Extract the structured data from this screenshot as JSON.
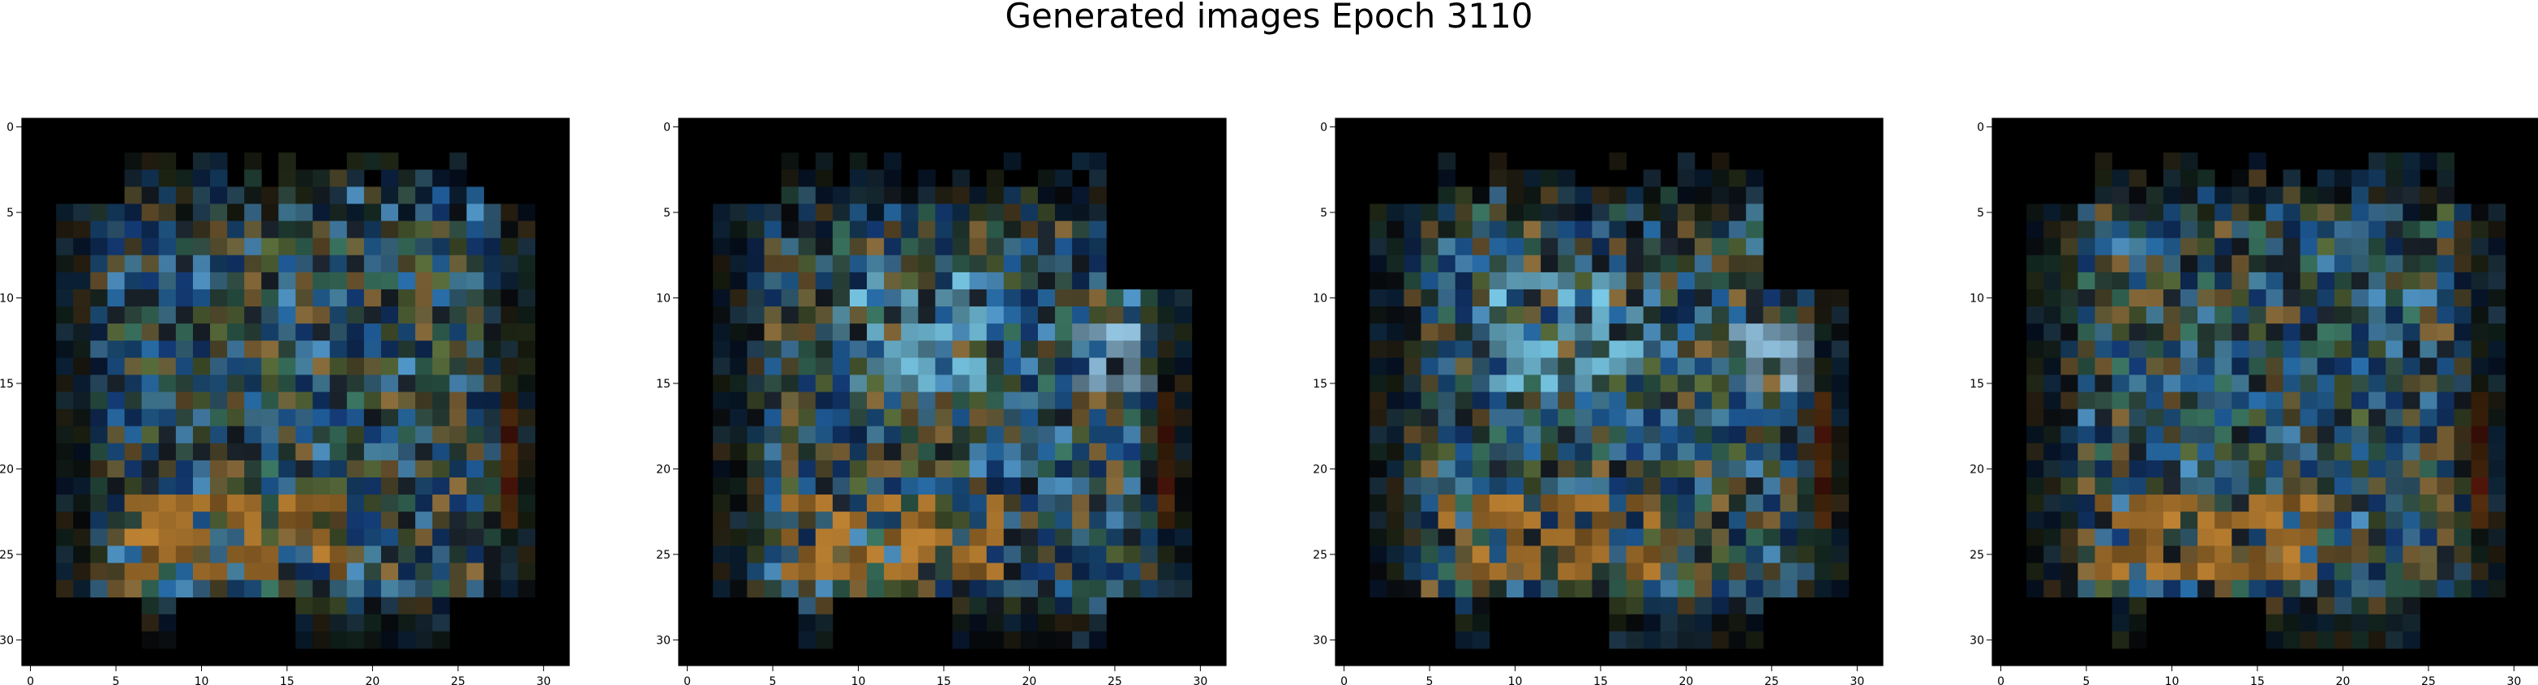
{
  "title": "Generated images Epoch 3110",
  "chart_data": {
    "type": "heatmap",
    "title": "Generated images Epoch 3110",
    "description_of_grid": "four 32x32 RGB generated images shown with axes",
    "x_ticks": [
      "0",
      "5",
      "10",
      "15",
      "20",
      "25",
      "30"
    ],
    "y_ticks": [
      "0",
      "5",
      "10",
      "15",
      "20",
      "25",
      "30"
    ],
    "x_tick_values": [
      0,
      5,
      10,
      15,
      20,
      25,
      30
    ],
    "y_tick_values": [
      0,
      5,
      10,
      15,
      20,
      25,
      30
    ],
    "xlim": [
      -0.5,
      31.5
    ],
    "ylim": [
      31.5,
      -0.5
    ],
    "grid": false,
    "panels": [
      {
        "name": "image-1",
        "seed": 11,
        "variant": "a"
      },
      {
        "name": "image-2",
        "seed": 23,
        "variant": "b"
      },
      {
        "name": "image-3",
        "seed": 37,
        "variant": "b"
      },
      {
        "name": "image-4",
        "seed": 51,
        "variant": "a"
      }
    ]
  }
}
